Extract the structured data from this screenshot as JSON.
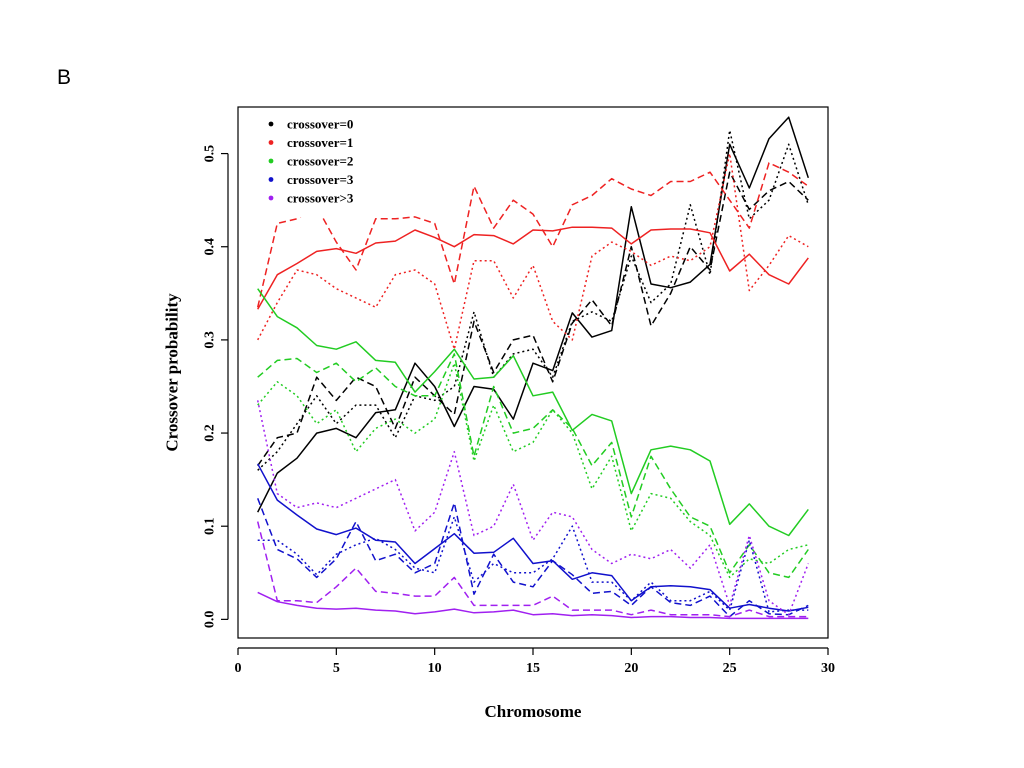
{
  "panel_label": "B",
  "chart_data": {
    "type": "line",
    "title": "",
    "xlabel": "Chromosome",
    "ylabel": "Crossover probability",
    "xlim": [
      0,
      30
    ],
    "ylim": [
      -0.02,
      0.55
    ],
    "xticks": [
      0,
      5,
      10,
      15,
      20,
      25,
      30
    ],
    "yticks": [
      0.0,
      0.1,
      0.2,
      0.3,
      0.4,
      0.5
    ],
    "ytick_labels": [
      "0.0",
      "0.1",
      "0.2",
      "0.3",
      "0.4",
      "0.5"
    ],
    "legend_position": "top-left",
    "legend": [
      {
        "label": "crossover=0",
        "color": "#000000"
      },
      {
        "label": "crossover=1",
        "color": "#ee2222"
      },
      {
        "label": "crossover=2",
        "color": "#22cc22"
      },
      {
        "label": "crossover=3",
        "color": "#1111cc"
      },
      {
        "label": "crossover>3",
        "color": "#a020f0"
      }
    ],
    "x": [
      1,
      2,
      3,
      4,
      5,
      6,
      7,
      8,
      9,
      10,
      11,
      12,
      13,
      14,
      15,
      16,
      17,
      18,
      19,
      20,
      21,
      22,
      23,
      24,
      25,
      26,
      27,
      28,
      29
    ],
    "series": [
      {
        "group": 0,
        "color": "#000000",
        "dash": "solid",
        "values": [
          0.115,
          0.157,
          0.173,
          0.2,
          0.205,
          0.195,
          0.222,
          0.225,
          0.275,
          0.25,
          0.207,
          0.25,
          0.247,
          0.215,
          0.275,
          0.267,
          0.329,
          0.303,
          0.31,
          0.443,
          0.36,
          0.356,
          0.362,
          0.381,
          0.51,
          0.463,
          0.516,
          0.539,
          0.474
        ]
      },
      {
        "group": 0,
        "color": "#000000",
        "dash": "dashed",
        "values": [
          0.165,
          0.195,
          0.2,
          0.26,
          0.235,
          0.26,
          0.25,
          0.205,
          0.26,
          0.24,
          0.22,
          0.32,
          0.265,
          0.3,
          0.305,
          0.255,
          0.318,
          0.343,
          0.315,
          0.4,
          0.315,
          0.35,
          0.4,
          0.375,
          0.48,
          0.44,
          0.46,
          0.47,
          0.45
        ]
      },
      {
        "group": 0,
        "color": "#000000",
        "dash": "dotted",
        "values": [
          0.16,
          0.18,
          0.21,
          0.24,
          0.21,
          0.23,
          0.23,
          0.195,
          0.24,
          0.235,
          0.25,
          0.33,
          0.26,
          0.285,
          0.29,
          0.26,
          0.32,
          0.33,
          0.32,
          0.39,
          0.34,
          0.36,
          0.445,
          0.37,
          0.525,
          0.43,
          0.45,
          0.51,
          0.445
        ]
      },
      {
        "group": 1,
        "color": "#ee2222",
        "dash": "solid",
        "values": [
          0.333,
          0.37,
          0.382,
          0.395,
          0.398,
          0.393,
          0.404,
          0.406,
          0.418,
          0.41,
          0.4,
          0.413,
          0.412,
          0.403,
          0.418,
          0.417,
          0.421,
          0.421,
          0.42,
          0.403,
          0.418,
          0.419,
          0.419,
          0.415,
          0.374,
          0.392,
          0.37,
          0.36,
          0.388
        ]
      },
      {
        "group": 1,
        "color": "#ee2222",
        "dash": "dashed",
        "values": [
          0.335,
          0.425,
          0.43,
          0.443,
          0.405,
          0.375,
          0.43,
          0.43,
          0.432,
          0.425,
          0.36,
          0.465,
          0.42,
          0.45,
          0.435,
          0.4,
          0.445,
          0.455,
          0.473,
          0.462,
          0.455,
          0.47,
          0.47,
          0.48,
          0.45,
          0.42,
          0.49,
          0.48,
          0.465
        ]
      },
      {
        "group": 1,
        "color": "#ee2222",
        "dash": "dotted",
        "values": [
          0.3,
          0.34,
          0.375,
          0.37,
          0.355,
          0.345,
          0.335,
          0.37,
          0.375,
          0.36,
          0.29,
          0.385,
          0.385,
          0.345,
          0.38,
          0.32,
          0.3,
          0.39,
          0.405,
          0.395,
          0.38,
          0.39,
          0.385,
          0.4,
          0.5,
          0.353,
          0.38,
          0.412,
          0.4
        ]
      },
      {
        "group": 2,
        "color": "#22cc22",
        "dash": "solid",
        "values": [
          0.355,
          0.325,
          0.313,
          0.294,
          0.29,
          0.298,
          0.278,
          0.276,
          0.244,
          0.266,
          0.29,
          0.258,
          0.26,
          0.283,
          0.24,
          0.244,
          0.203,
          0.22,
          0.213,
          0.135,
          0.182,
          0.186,
          0.182,
          0.17,
          0.102,
          0.124,
          0.1,
          0.09,
          0.118
        ]
      },
      {
        "group": 2,
        "color": "#22cc22",
        "dash": "dashed",
        "values": [
          0.26,
          0.278,
          0.28,
          0.265,
          0.275,
          0.255,
          0.27,
          0.25,
          0.24,
          0.24,
          0.285,
          0.175,
          0.25,
          0.2,
          0.205,
          0.225,
          0.205,
          0.165,
          0.19,
          0.11,
          0.175,
          0.14,
          0.11,
          0.1,
          0.05,
          0.08,
          0.05,
          0.045,
          0.075
        ]
      },
      {
        "group": 2,
        "color": "#22cc22",
        "dash": "dotted",
        "values": [
          0.23,
          0.255,
          0.24,
          0.21,
          0.225,
          0.18,
          0.205,
          0.215,
          0.2,
          0.215,
          0.275,
          0.17,
          0.23,
          0.18,
          0.19,
          0.225,
          0.2,
          0.14,
          0.175,
          0.095,
          0.135,
          0.13,
          0.105,
          0.09,
          0.045,
          0.065,
          0.06,
          0.075,
          0.08
        ]
      },
      {
        "group": 3,
        "color": "#1111cc",
        "dash": "solid",
        "values": [
          0.167,
          0.128,
          0.112,
          0.097,
          0.091,
          0.098,
          0.085,
          0.083,
          0.06,
          0.076,
          0.092,
          0.071,
          0.072,
          0.087,
          0.06,
          0.063,
          0.043,
          0.05,
          0.047,
          0.02,
          0.035,
          0.036,
          0.035,
          0.032,
          0.012,
          0.016,
          0.012,
          0.009,
          0.013
        ]
      },
      {
        "group": 3,
        "color": "#1111cc",
        "dash": "dashed",
        "values": [
          0.13,
          0.075,
          0.065,
          0.045,
          0.065,
          0.105,
          0.063,
          0.07,
          0.05,
          0.06,
          0.125,
          0.027,
          0.07,
          0.04,
          0.035,
          0.063,
          0.048,
          0.028,
          0.03,
          0.015,
          0.035,
          0.018,
          0.015,
          0.025,
          0.003,
          0.02,
          0.006,
          0.005,
          0.015
        ]
      },
      {
        "group": 3,
        "color": "#1111cc",
        "dash": "dotted",
        "values": [
          0.085,
          0.085,
          0.07,
          0.048,
          0.07,
          0.08,
          0.087,
          0.075,
          0.055,
          0.05,
          0.11,
          0.04,
          0.06,
          0.05,
          0.05,
          0.065,
          0.1,
          0.04,
          0.04,
          0.02,
          0.04,
          0.02,
          0.02,
          0.03,
          0.01,
          0.085,
          0.008,
          0.01,
          0.01
        ]
      },
      {
        "group": 4,
        "color": "#a020f0",
        "dash": "solid",
        "values": [
          0.029,
          0.019,
          0.015,
          0.012,
          0.011,
          0.012,
          0.01,
          0.009,
          0.006,
          0.008,
          0.011,
          0.007,
          0.008,
          0.01,
          0.005,
          0.006,
          0.004,
          0.005,
          0.004,
          0.002,
          0.003,
          0.003,
          0.002,
          0.002,
          0.001,
          0.001,
          0.001,
          0.001,
          0.001
        ]
      },
      {
        "group": 4,
        "color": "#a020f0",
        "dash": "dashed",
        "values": [
          0.105,
          0.02,
          0.02,
          0.018,
          0.035,
          0.055,
          0.03,
          0.028,
          0.025,
          0.025,
          0.045,
          0.015,
          0.015,
          0.015,
          0.015,
          0.025,
          0.01,
          0.01,
          0.01,
          0.005,
          0.01,
          0.005,
          0.005,
          0.005,
          0.003,
          0.01,
          0.003,
          0.003,
          0.003
        ]
      },
      {
        "group": 4,
        "color": "#a020f0",
        "dash": "dotted",
        "values": [
          0.235,
          0.135,
          0.12,
          0.125,
          0.12,
          0.13,
          0.14,
          0.15,
          0.095,
          0.115,
          0.18,
          0.09,
          0.1,
          0.145,
          0.085,
          0.115,
          0.11,
          0.075,
          0.06,
          0.07,
          0.065,
          0.075,
          0.055,
          0.08,
          0.015,
          0.09,
          0.02,
          0.005,
          0.06
        ]
      }
    ]
  }
}
